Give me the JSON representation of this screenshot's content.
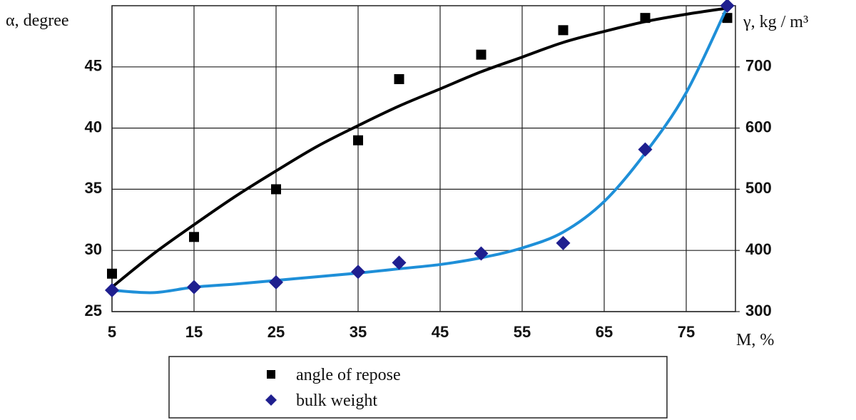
{
  "chart_data": {
    "type": "scatter",
    "ylabel": "α, degree",
    "y2label": "γ, kg / m³",
    "xlabel": "M, %",
    "xlim": [
      5,
      81
    ],
    "xticks": [
      5,
      15,
      25,
      35,
      45,
      55,
      65,
      75
    ],
    "ylim": [
      25,
      50
    ],
    "yticks": [
      25,
      30,
      35,
      40,
      45
    ],
    "y2lim": [
      300,
      800
    ],
    "y2ticks": [
      300,
      400,
      500,
      600,
      700
    ],
    "grid": true,
    "x": [
      5,
      15,
      25,
      35,
      40,
      50,
      60,
      70,
      80
    ],
    "trend_x": [
      5,
      10,
      15,
      20,
      25,
      30,
      35,
      40,
      45,
      50,
      55,
      60,
      65,
      70,
      75,
      80
    ],
    "series": [
      {
        "name": "angle of repose",
        "color": "#000000",
        "marker": "square",
        "values": [
          28.1,
          31.1,
          35,
          39,
          44,
          46,
          48,
          49,
          49
        ],
        "trend": [
          27,
          29.7,
          32.1,
          34.4,
          36.5,
          38.5,
          40.2,
          41.8,
          43.2,
          44.6,
          45.8,
          47,
          47.9,
          48.7,
          49.3,
          49.8
        ],
        "trend_color": "#000000"
      },
      {
        "name": "bulk weight",
        "color": "#1f1f8f",
        "marker": "diamond",
        "axis": "y2",
        "values": [
          335,
          340,
          348,
          365,
          380,
          395,
          412,
          565,
          800
        ],
        "trend": [
          335,
          331,
          340,
          345,
          351,
          357,
          363,
          370,
          377,
          388,
          404,
          430,
          480,
          559,
          658,
          798
        ],
        "trend_color": "#1e8fd8"
      }
    ]
  }
}
